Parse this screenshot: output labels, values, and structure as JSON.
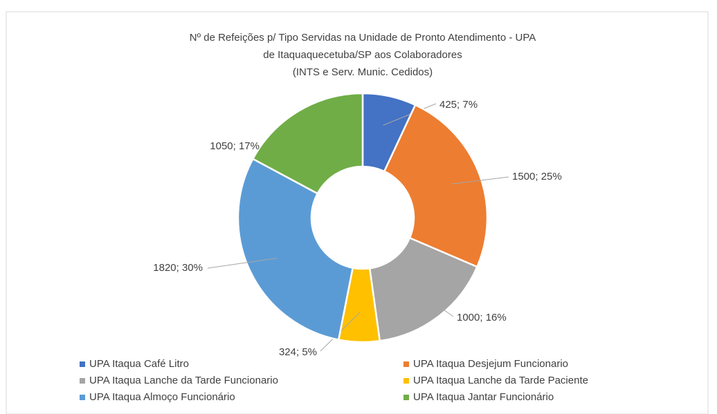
{
  "chart_data": {
    "type": "donut",
    "title": [
      "Nº de Refeições p/ Tipo Servidas na Unidade de Pronto Atendimento - UPA",
      "de Itaquaquecetuba/SP aos Colaboradores",
      "(INTS e Serv. Munic. Cedidos)"
    ],
    "categories": [
      "UPA Itaqua Café Litro",
      "UPA Itaqua Desjejum Funcionario",
      "UPA Itaqua Lanche da Tarde Funcionario",
      "UPA Itaqua Lanche da Tarde Paciente",
      "UPA Itaqua Almoço Funcionário",
      "UPA Itaqua Jantar Funcionário"
    ],
    "values": [
      425,
      1500,
      1000,
      324,
      1820,
      1050
    ],
    "value_labels": [
      "425; 7%",
      "1500; 25%",
      "1000; 16%",
      "324; 5%",
      "1820; 30%",
      "1050; 17%"
    ],
    "colors": [
      "#4472c4",
      "#ed7d31",
      "#a5a5a5",
      "#ffc000",
      "#5b9bd5",
      "#70ad47"
    ],
    "legend": "bottom"
  }
}
